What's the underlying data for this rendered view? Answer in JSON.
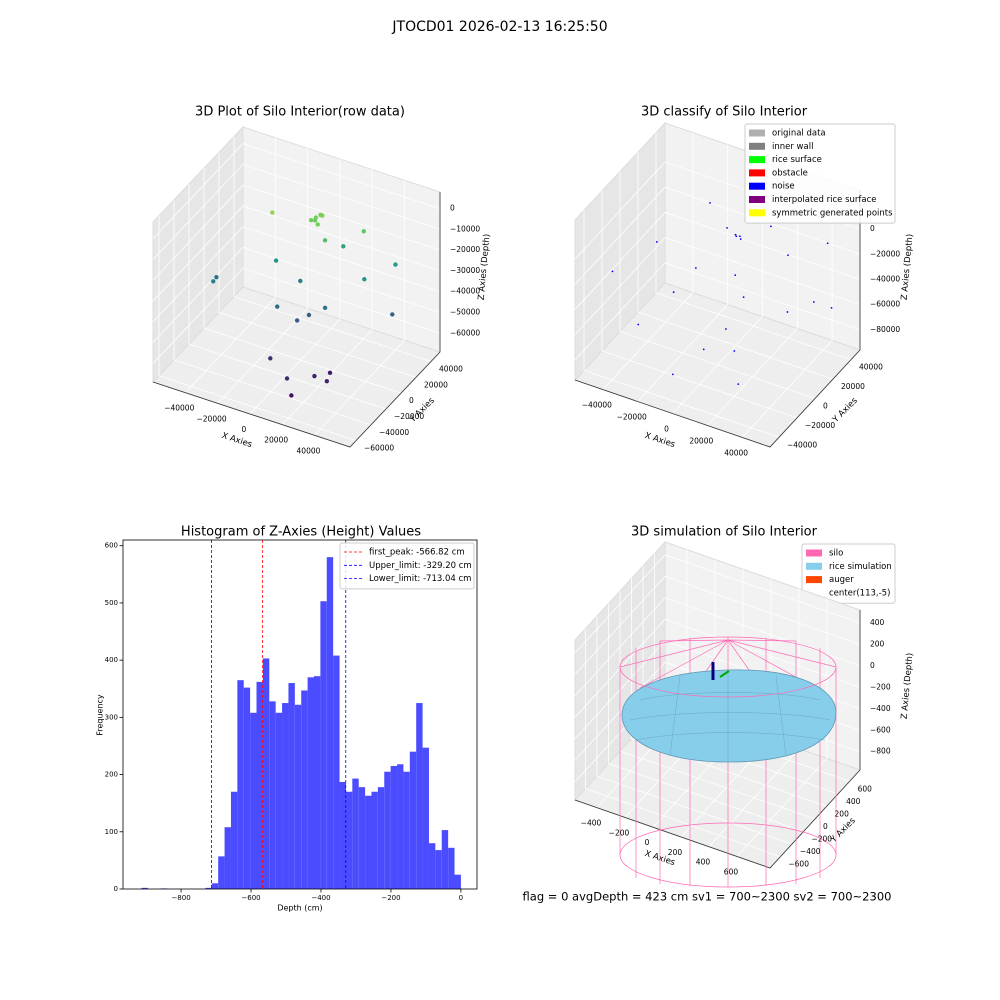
{
  "title": "JTOCD01 2026-02-13 16:25:50",
  "status": "flag = 0     avgDepth = 423 cm  sv1 = 700~2300  sv2 = 700~2300",
  "chart_data": [
    {
      "type": "scatter3d",
      "title": "3D Plot of Silo Interior(row data)",
      "xlabel": "X Axies",
      "ylabel": "Y Axies",
      "zlabel": "Z Axies (Depth)",
      "cmap": "viridis",
      "xlim": [
        -60000,
        62000
      ],
      "ylim": [
        -68000,
        52000
      ],
      "zlim": [
        -69000,
        8000
      ],
      "xticks": [
        {
          "value": -40000,
          "label": "−40000"
        },
        {
          "value": -20000,
          "label": "−20000"
        },
        0,
        20000,
        40000
      ],
      "yticks": [
        {
          "value": -60000,
          "label": "−60000"
        },
        {
          "value": -40000,
          "label": "−40000"
        },
        {
          "value": -20000,
          "label": "−20000"
        },
        0,
        20000,
        40000
      ],
      "zticks": [
        0,
        {
          "value": -10000,
          "label": "−10000"
        },
        {
          "value": -20000,
          "label": "−20000"
        },
        {
          "value": -30000,
          "label": "−30000"
        },
        {
          "value": -40000,
          "label": "−40000"
        },
        {
          "value": -50000,
          "label": "−50000"
        },
        {
          "value": -60000,
          "label": "−60000"
        }
      ],
      "x": [
        0,
        2000,
        -2000,
        4000,
        1000,
        -1000,
        3000,
        -20000,
        25000,
        8000,
        -45000,
        -50000,
        -20000,
        10000,
        30000,
        40000,
        45000,
        -10000,
        0,
        5000,
        15000,
        -5000,
        -5000,
        10000,
        20000,
        30000,
        25000,
        15000
      ],
      "y": [
        20000,
        22000,
        18000,
        20000,
        24000,
        21000,
        16000,
        5000,
        30000,
        15000,
        -20000,
        -5000,
        10000,
        35000,
        20000,
        40000,
        25000,
        -10000,
        -5000,
        0,
        0,
        10000,
        -30000,
        -40000,
        -25000,
        -30000,
        -15000,
        -45000
      ],
      "z": [
        -8000,
        -7000,
        -9000,
        -6000,
        -8000,
        -10000,
        -9000,
        -5000,
        -12000,
        -15000,
        -35000,
        -40000,
        -30000,
        -25000,
        -30000,
        -28000,
        -45000,
        -42000,
        -48000,
        -46000,
        -40000,
        -36000,
        -58000,
        -60000,
        -62000,
        -60000,
        -63000,
        -65000
      ]
    },
    {
      "type": "scatter3d",
      "title": "3D classify of Silo Interior",
      "xlabel": "X Axies",
      "ylabel": "Y Axies",
      "zlabel": "Z Axies (Depth)",
      "xlim": [
        -56000,
        56000
      ],
      "ylim": [
        -50000,
        50000
      ],
      "zlim": [
        -96000,
        31000
      ],
      "xticks": [
        {
          "value": -40000,
          "label": "−40000"
        },
        {
          "value": -20000,
          "label": "−20000"
        },
        0,
        20000,
        40000
      ],
      "yticks": [
        {
          "value": -40000,
          "label": "−40000"
        },
        {
          "value": -20000,
          "label": "−20000"
        },
        0,
        20000,
        40000
      ],
      "zticks": [
        0,
        {
          "value": -20000,
          "label": "−20000"
        },
        {
          "value": -40000,
          "label": "−40000"
        },
        {
          "value": -60000,
          "label": "−60000"
        },
        {
          "value": -80000,
          "label": "−80000"
        }
      ],
      "series": [
        {
          "name": "original data",
          "color": "#b0b0b0"
        },
        {
          "name": "inner wall",
          "color": "#808080"
        },
        {
          "name": "rice surface",
          "color": "#00ff00"
        },
        {
          "name": "obstacle",
          "color": "#ff0000"
        },
        {
          "name": "noise",
          "color": "#0000ff",
          "x": [
            -50000,
            -40000,
            -30000,
            -20000,
            -10000,
            0,
            2000,
            3000,
            1000,
            5000,
            10000,
            15000,
            20000,
            25000,
            30000,
            35000,
            40000,
            45000,
            -5000,
            10000,
            -15000,
            5000,
            50000,
            -25000
          ],
          "y": [
            -20000,
            10000,
            -30000,
            -10000,
            30000,
            20000,
            21000,
            20000,
            19000,
            10000,
            40000,
            0,
            -20000,
            30000,
            -35000,
            10000,
            45000,
            20000,
            -40000,
            -10000,
            5000,
            -25000,
            30000,
            40000
          ],
          "z": [
            -30000,
            -25000,
            -55000,
            -40000,
            -15000,
            -8000,
            -9000,
            -10000,
            -8000,
            -30000,
            -12000,
            -35000,
            -60000,
            -20000,
            -70000,
            -45000,
            -15000,
            -40000,
            -75000,
            -55000,
            -30000,
            -62000,
            -50000,
            -10000
          ]
        },
        {
          "name": "interpolated rice surface",
          "color": "#800080"
        },
        {
          "name": "symmetric generated points",
          "color": "#ffff00"
        }
      ]
    },
    {
      "type": "histogram",
      "title": "Histogram of Z-Axies (Height) Values",
      "xlabel": "Depth (cm)",
      "ylabel": "Frequency",
      "color": "#4b4bff",
      "xlim": [
        -966,
        46
      ],
      "ylim": [
        0,
        610
      ],
      "xticks": [
        {
          "value": -800,
          "label": "−800"
        },
        {
          "value": -600,
          "label": "−600"
        },
        {
          "value": -400,
          "label": "−400"
        },
        {
          "value": -200,
          "label": "−200"
        },
        0
      ],
      "yticks": [
        0,
        100,
        200,
        300,
        400,
        500,
        600
      ],
      "bins": [
        -913,
        -894.74,
        -876.48,
        -858.22,
        -839.96,
        -821.7,
        -803.44,
        -785.18,
        -766.92,
        -748.66,
        -730.4,
        -712.14,
        -693.88,
        -675.62,
        -657.36,
        -639.1,
        -620.84,
        -602.58,
        -584.32,
        -566.06,
        -547.8,
        -529.54,
        -511.28,
        -493.02,
        -474.76,
        -456.5,
        -438.24,
        -419.98,
        -401.72,
        -383.46,
        -365.2,
        -346.94,
        -328.68,
        -310.42,
        -292.16,
        -273.9,
        -255.64,
        -237.38,
        -219.12,
        -200.86,
        -182.6,
        -164.34,
        -146.08,
        -127.82,
        -109.56,
        -91.3,
        -73.04,
        -54.78,
        -36.52,
        -18.26,
        0
      ],
      "counts": [
        2,
        0,
        0,
        1,
        0,
        0,
        0,
        0,
        0,
        0,
        2,
        10,
        57,
        108,
        170,
        365,
        352,
        308,
        362,
        403,
        328,
        308,
        325,
        360,
        322,
        347,
        370,
        372,
        503,
        580,
        408,
        187,
        170,
        193,
        178,
        163,
        170,
        178,
        205,
        215,
        218,
        205,
        240,
        325,
        247,
        80,
        68,
        103,
        72,
        25
      ],
      "vlines": [
        {
          "name": "first_peak: -566.82 cm",
          "value": -566.82,
          "color": "#ff0000"
        },
        {
          "name": "Upper_limit: -329.20 cm",
          "value": -329.2,
          "color": "#0000ff"
        },
        {
          "name": "Lower_limit: -713.04 cm",
          "value": -713.04,
          "color": "#0000ff"
        }
      ]
    },
    {
      "type": "surface3d",
      "title": "3D simulation of Silo Interior",
      "xlabel": "X Axies",
      "ylabel": "Y Axies",
      "zlabel": "Z Axies (Depth)",
      "xlim": [
        -557,
        836
      ],
      "ylim": [
        -780,
        780
      ],
      "zlim": [
        -970,
        520
      ],
      "xticks": [
        {
          "value": -400,
          "label": "−400"
        },
        {
          "value": -200,
          "label": "−200"
        },
        0,
        200,
        400,
        600
      ],
      "yticks": [
        {
          "value": -600,
          "label": "−600"
        },
        {
          "value": -400,
          "label": "−400"
        },
        {
          "value": -200,
          "label": "−200"
        },
        0,
        200,
        400,
        600
      ],
      "zticks": [
        400,
        200,
        0,
        {
          "value": -200,
          "label": "−200"
        },
        {
          "value": -400,
          "label": "−400"
        },
        {
          "value": -600,
          "label": "−600"
        },
        {
          "value": -800,
          "label": "−800"
        }
      ],
      "legend": [
        {
          "name": "silo",
          "color": "#ff69b4"
        },
        {
          "name": "rice simulation",
          "color": "#87ceeb"
        },
        {
          "name": "auger",
          "color": "#ff4500"
        },
        {
          "name": "center(113,-5)"
        }
      ]
    }
  ]
}
